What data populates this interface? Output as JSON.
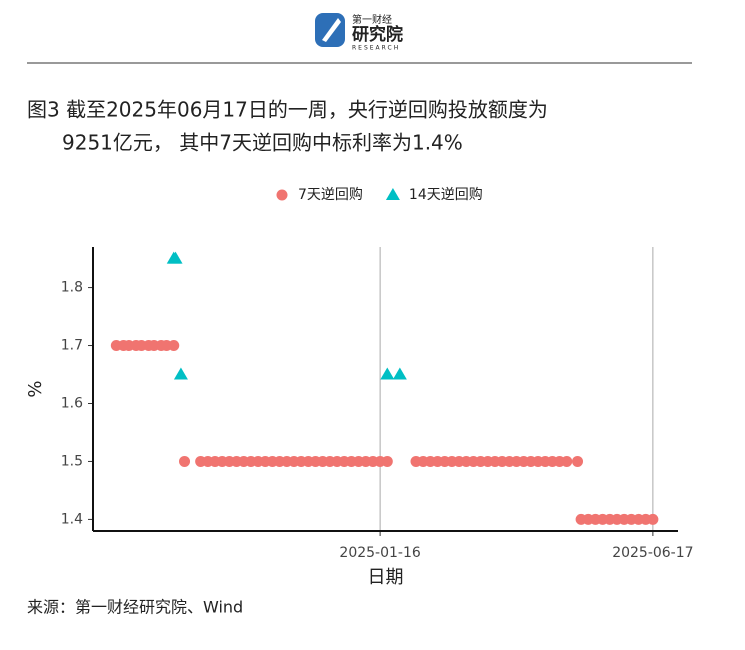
{
  "header": {
    "brand": "第一财经",
    "name": "研究院",
    "sub": "RESEARCH"
  },
  "title": [
    "图3  截至2025年06月17日的一周，央行逆回购投放额度为",
    "9251亿元， 其中7天逆回购中标利率为1.4%"
  ],
  "chart_data": {
    "type": "scatter",
    "x_label": "日期",
    "y_label": "%",
    "xlim": [
      "2024-08-09",
      "2025-07-01"
    ],
    "xticks": [
      "2025-01-16",
      "2025-06-17"
    ],
    "x_grid": true,
    "ylim": [
      1.38,
      1.87
    ],
    "yticks": [
      1.4,
      1.5,
      1.6,
      1.7,
      1.8
    ],
    "legend": "top",
    "series": [
      {
        "name": "7天逆回购",
        "color": "#f07470",
        "marker": "circle",
        "x": [
          "2024-08-22",
          "2024-08-26",
          "2024-08-29",
          "2024-09-02",
          "2024-09-05",
          "2024-09-09",
          "2024-09-12",
          "2024-09-16",
          "2024-09-19",
          "2024-09-23",
          "2024-09-29",
          "2024-10-08",
          "2024-10-12",
          "2024-10-16",
          "2024-10-20",
          "2024-10-24",
          "2024-10-28",
          "2024-11-01",
          "2024-11-05",
          "2024-11-09",
          "2024-11-13",
          "2024-11-17",
          "2024-11-21",
          "2024-11-25",
          "2024-11-29",
          "2024-12-03",
          "2024-12-07",
          "2024-12-11",
          "2024-12-15",
          "2024-12-19",
          "2024-12-23",
          "2024-12-27",
          "2024-12-31",
          "2025-01-04",
          "2025-01-08",
          "2025-01-12",
          "2025-01-16",
          "2025-01-20",
          "2025-02-05",
          "2025-02-09",
          "2025-02-13",
          "2025-02-17",
          "2025-02-21",
          "2025-02-25",
          "2025-03-01",
          "2025-03-05",
          "2025-03-09",
          "2025-03-13",
          "2025-03-17",
          "2025-03-21",
          "2025-03-25",
          "2025-03-29",
          "2025-04-02",
          "2025-04-06",
          "2025-04-10",
          "2025-04-14",
          "2025-04-18",
          "2025-04-22",
          "2025-04-26",
          "2025-04-30",
          "2025-05-06",
          "2025-05-08",
          "2025-05-12",
          "2025-05-16",
          "2025-05-20",
          "2025-05-24",
          "2025-05-28",
          "2025-06-01",
          "2025-06-05",
          "2025-06-09",
          "2025-06-13",
          "2025-06-17"
        ],
        "values": [
          1.7,
          1.7,
          1.7,
          1.7,
          1.7,
          1.7,
          1.7,
          1.7,
          1.7,
          1.7,
          1.5,
          1.5,
          1.5,
          1.5,
          1.5,
          1.5,
          1.5,
          1.5,
          1.5,
          1.5,
          1.5,
          1.5,
          1.5,
          1.5,
          1.5,
          1.5,
          1.5,
          1.5,
          1.5,
          1.5,
          1.5,
          1.5,
          1.5,
          1.5,
          1.5,
          1.5,
          1.5,
          1.5,
          1.5,
          1.5,
          1.5,
          1.5,
          1.5,
          1.5,
          1.5,
          1.5,
          1.5,
          1.5,
          1.5,
          1.5,
          1.5,
          1.5,
          1.5,
          1.5,
          1.5,
          1.5,
          1.5,
          1.5,
          1.5,
          1.5,
          1.5,
          1.4,
          1.4,
          1.4,
          1.4,
          1.4,
          1.4,
          1.4,
          1.4,
          1.4,
          1.4,
          1.4
        ]
      },
      {
        "name": "14天逆回购",
        "color": "#00bfc4",
        "marker": "triangle",
        "x": [
          "2024-09-23",
          "2024-09-24",
          "2024-09-27",
          "2025-01-20",
          "2025-01-27"
        ],
        "values": [
          1.85,
          1.85,
          1.65,
          1.65,
          1.65
        ]
      }
    ]
  },
  "source": "来源：第一财经研究院、Wind"
}
